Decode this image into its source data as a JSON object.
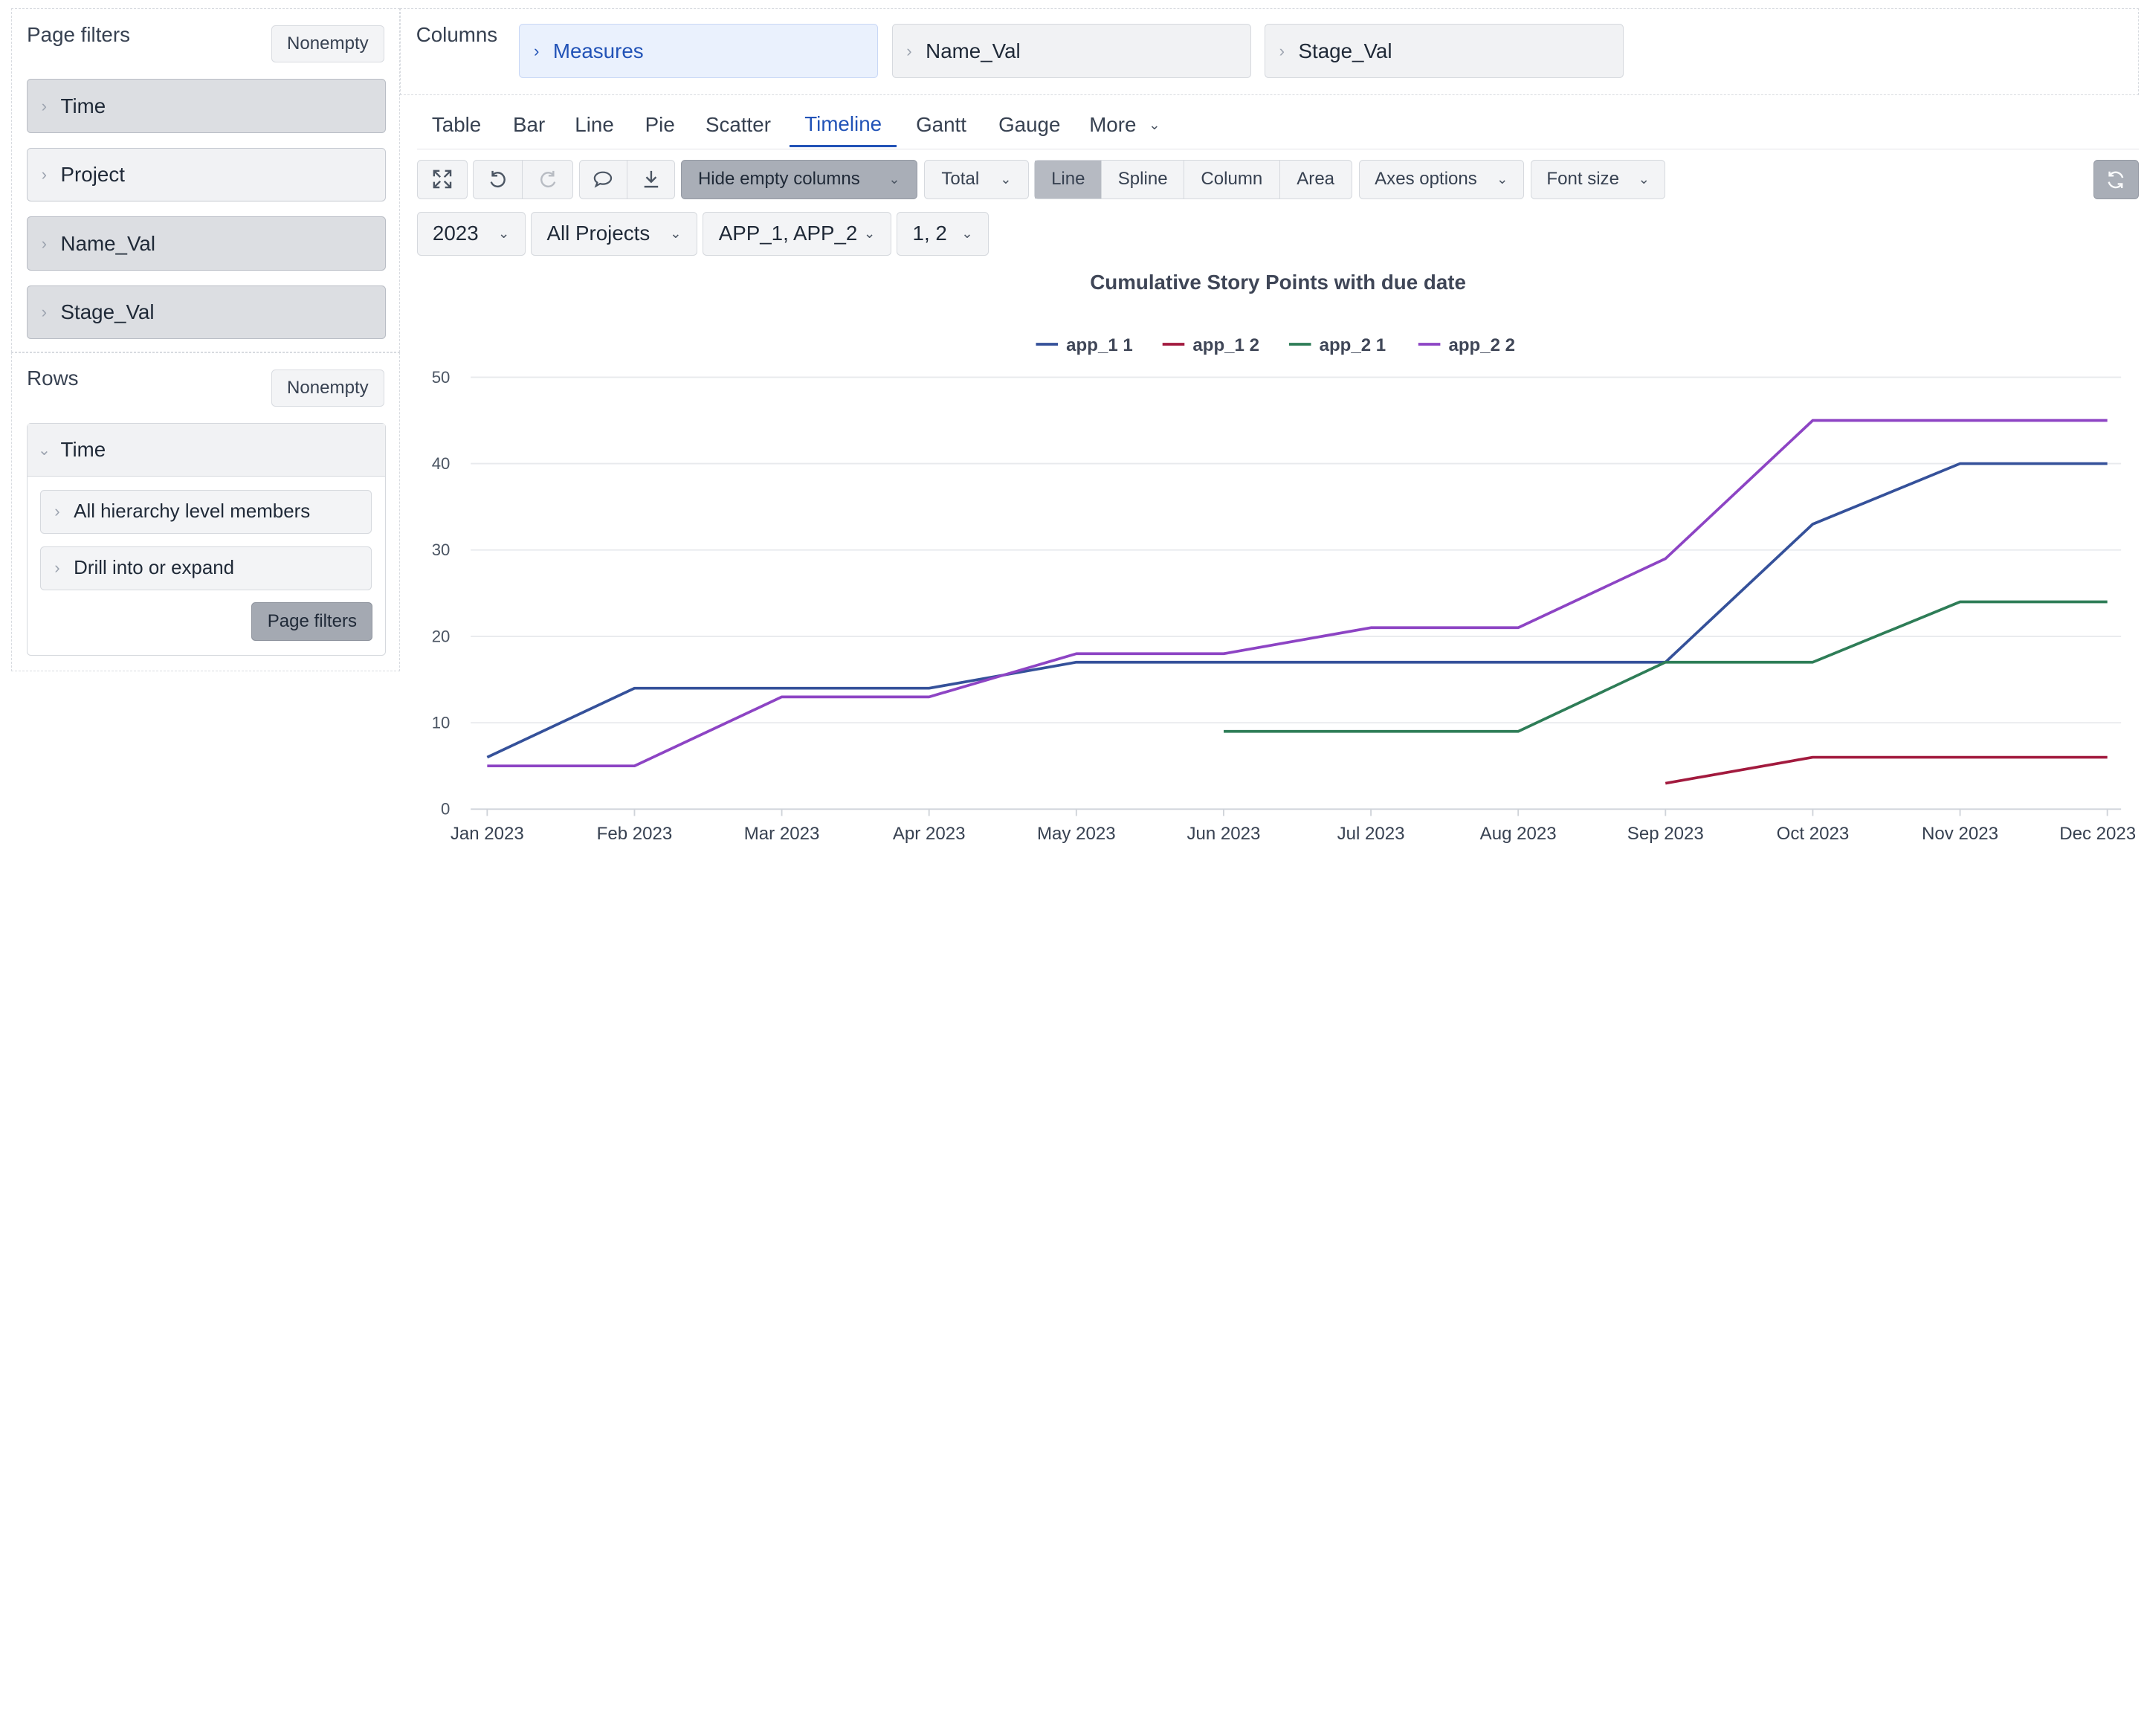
{
  "left_panel": {
    "page_filters": {
      "title": "Page filters",
      "nonempty_label": "Nonempty",
      "items": [
        {
          "label": "Time"
        },
        {
          "label": "Project"
        },
        {
          "label": "Name_Val"
        },
        {
          "label": "Stage_Val"
        }
      ]
    },
    "rows": {
      "title": "Rows",
      "nonempty_label": "Nonempty",
      "time": {
        "label": "Time",
        "options": [
          {
            "label": "All hierarchy level members"
          },
          {
            "label": "Drill into or expand"
          }
        ],
        "page_filters_button": "Page filters"
      }
    }
  },
  "columns": {
    "title": "Columns",
    "items": [
      {
        "label": "Measures"
      },
      {
        "label": "Name_Val"
      },
      {
        "label": "Stage_Val"
      }
    ]
  },
  "tabs": [
    {
      "label": "Table"
    },
    {
      "label": "Bar"
    },
    {
      "label": "Line"
    },
    {
      "label": "Pie"
    },
    {
      "label": "Scatter"
    },
    {
      "label": "Timeline"
    },
    {
      "label": "Gantt"
    },
    {
      "label": "Gauge"
    },
    {
      "label": "More"
    }
  ],
  "active_tab": "Timeline",
  "toolbar": {
    "icons": [
      "expand-icon",
      "undo-icon",
      "redo-icon",
      "comment-icon",
      "download-icon",
      "refresh-icon"
    ],
    "hide_empty": "Hide empty columns",
    "total": "Total",
    "line_types": [
      "Line",
      "Spline",
      "Column",
      "Area"
    ],
    "selected_line_type": "Line",
    "axes_options": "Axes options",
    "font_size": "Font size"
  },
  "filters": [
    {
      "label": "2023"
    },
    {
      "label": "All Projects"
    },
    {
      "label": "APP_1, APP_2"
    },
    {
      "label": "1, 2"
    }
  ],
  "chart_data": {
    "type": "line",
    "title": "Cumulative Story Points with due date",
    "xlabel": "",
    "ylabel": "",
    "x": [
      "Jan 2023",
      "Feb 2023",
      "Mar 2023",
      "Apr 2023",
      "May 2023",
      "Jun 2023",
      "Jul 2023",
      "Aug 2023",
      "Sep 2023",
      "Oct 2023",
      "Nov 2023",
      "Dec 2023"
    ],
    "ylim": [
      0,
      50
    ],
    "yticks": [
      0,
      10,
      20,
      30,
      40,
      50
    ],
    "grid": true,
    "legend_position": "top",
    "series": [
      {
        "name": "app_1 1",
        "color": "#35519a",
        "values": [
          6,
          14,
          14,
          14,
          17,
          17,
          17,
          17,
          17,
          33,
          40,
          40
        ]
      },
      {
        "name": "app_1 2",
        "color": "#a21a3e",
        "values": [
          null,
          null,
          null,
          null,
          null,
          null,
          null,
          null,
          3,
          6,
          6,
          6
        ]
      },
      {
        "name": "app_2 1",
        "color": "#2e7d57",
        "values": [
          null,
          null,
          null,
          null,
          null,
          9,
          9,
          9,
          17,
          17,
          24,
          24
        ]
      },
      {
        "name": "app_2 2",
        "color": "#8d44c4",
        "values": [
          5,
          5,
          13,
          13,
          18,
          18,
          21,
          21,
          29,
          45,
          45,
          45
        ]
      }
    ]
  }
}
